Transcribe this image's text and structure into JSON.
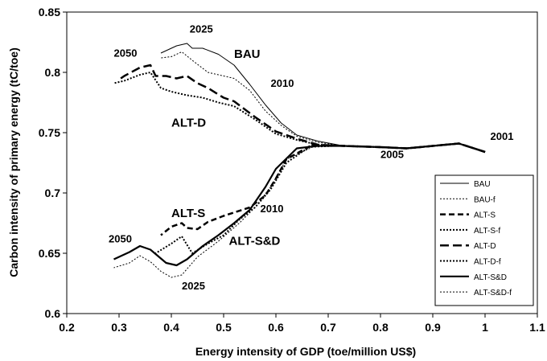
{
  "chart_data": {
    "type": "line",
    "xlabel": "Energy intensity of GDP (toe/million US$)",
    "ylabel": "Carbon intensity of primary energy (tC/toe)",
    "xlim": [
      0.2,
      1.1
    ],
    "ylim": [
      0.6,
      0.85
    ],
    "xticks": [
      0.2,
      0.3,
      0.4,
      0.5,
      0.6,
      0.7,
      0.8,
      0.9,
      1.0,
      1.1
    ],
    "yticks": [
      0.6,
      0.65,
      0.7,
      0.75,
      0.8,
      0.85
    ],
    "xtick_labels": [
      "0.2",
      "0.3",
      "0.4",
      "0.5",
      "0.6",
      "0.7",
      "0.8",
      "0.9",
      "1",
      "1.1"
    ],
    "ytick_labels": [
      "0.6",
      "0.65",
      "0.7",
      "0.75",
      "0.8",
      "0.85"
    ],
    "grid": false,
    "legend_position": "right",
    "series": [
      {
        "name": "BAU",
        "style": "solid-thin",
        "x": [
          1.0,
          0.95,
          0.85,
          0.8,
          0.73,
          0.68,
          0.64,
          0.61,
          0.58,
          0.55,
          0.52,
          0.49,
          0.46,
          0.44,
          0.43,
          0.41,
          0.39,
          0.38
        ],
        "y": [
          0.734,
          0.741,
          0.737,
          0.738,
          0.739,
          0.743,
          0.748,
          0.758,
          0.773,
          0.79,
          0.806,
          0.815,
          0.82,
          0.82,
          0.824,
          0.822,
          0.818,
          0.816
        ]
      },
      {
        "name": "BAU-f",
        "style": "dotted-thin",
        "x": [
          1.0,
          0.95,
          0.85,
          0.8,
          0.73,
          0.68,
          0.64,
          0.61,
          0.58,
          0.55,
          0.52,
          0.49,
          0.47,
          0.44,
          0.42,
          0.4,
          0.38
        ],
        "y": [
          0.734,
          0.741,
          0.737,
          0.738,
          0.739,
          0.742,
          0.747,
          0.756,
          0.768,
          0.785,
          0.795,
          0.798,
          0.8,
          0.81,
          0.817,
          0.813,
          0.812
        ]
      },
      {
        "name": "ALT-S",
        "style": "dash-thick",
        "x": [
          1.0,
          0.95,
          0.85,
          0.8,
          0.73,
          0.67,
          0.62,
          0.6,
          0.58,
          0.55,
          0.5,
          0.47,
          0.45,
          0.43,
          0.42,
          0.4,
          0.38
        ],
        "y": [
          0.734,
          0.741,
          0.737,
          0.738,
          0.739,
          0.74,
          0.728,
          0.712,
          0.698,
          0.688,
          0.681,
          0.676,
          0.67,
          0.671,
          0.675,
          0.672,
          0.665
        ]
      },
      {
        "name": "ALT-S-f",
        "style": "dotted-thick",
        "x": [
          1.0,
          0.95,
          0.85,
          0.8,
          0.73,
          0.67,
          0.62,
          0.59,
          0.56,
          0.53,
          0.5,
          0.47,
          0.44,
          0.42,
          0.4,
          0.37
        ],
        "y": [
          0.734,
          0.741,
          0.737,
          0.738,
          0.739,
          0.74,
          0.725,
          0.703,
          0.688,
          0.678,
          0.665,
          0.658,
          0.65,
          0.664,
          0.658,
          0.65
        ]
      },
      {
        "name": "ALT-D",
        "style": "longdash-thick",
        "x": [
          1.0,
          0.95,
          0.85,
          0.8,
          0.73,
          0.68,
          0.64,
          0.6,
          0.56,
          0.52,
          0.5,
          0.47,
          0.45,
          0.43,
          0.41,
          0.39,
          0.37,
          0.36,
          0.34,
          0.31,
          0.3
        ],
        "y": [
          0.734,
          0.741,
          0.737,
          0.738,
          0.739,
          0.74,
          0.745,
          0.751,
          0.763,
          0.776,
          0.779,
          0.787,
          0.791,
          0.797,
          0.795,
          0.797,
          0.797,
          0.806,
          0.804,
          0.797,
          0.794
        ]
      },
      {
        "name": "ALT-D-f",
        "style": "dotted-thick",
        "x": [
          1.0,
          0.95,
          0.85,
          0.8,
          0.73,
          0.68,
          0.64,
          0.6,
          0.56,
          0.52,
          0.49,
          0.46,
          0.43,
          0.4,
          0.38,
          0.36,
          0.34,
          0.31,
          0.29
        ],
        "y": [
          0.734,
          0.741,
          0.737,
          0.738,
          0.739,
          0.74,
          0.744,
          0.749,
          0.761,
          0.772,
          0.775,
          0.779,
          0.781,
          0.784,
          0.787,
          0.8,
          0.798,
          0.793,
          0.791
        ]
      },
      {
        "name": "ALT-S&D",
        "style": "solid-thick",
        "x": [
          1.0,
          0.95,
          0.85,
          0.8,
          0.73,
          0.68,
          0.64,
          0.6,
          0.58,
          0.55,
          0.52,
          0.49,
          0.46,
          0.43,
          0.41,
          0.39,
          0.36,
          0.34,
          0.32,
          0.29
        ],
        "y": [
          0.734,
          0.741,
          0.737,
          0.738,
          0.739,
          0.739,
          0.737,
          0.72,
          0.705,
          0.686,
          0.675,
          0.665,
          0.656,
          0.645,
          0.64,
          0.642,
          0.653,
          0.656,
          0.651,
          0.645
        ]
      },
      {
        "name": "ALT-S&D-f",
        "style": "dotted-thin",
        "x": [
          1.0,
          0.95,
          0.85,
          0.8,
          0.73,
          0.67,
          0.62,
          0.59,
          0.56,
          0.53,
          0.49,
          0.45,
          0.42,
          0.4,
          0.38,
          0.36,
          0.34,
          0.32,
          0.29
        ],
        "y": [
          0.734,
          0.741,
          0.737,
          0.738,
          0.739,
          0.738,
          0.728,
          0.705,
          0.688,
          0.675,
          0.66,
          0.647,
          0.632,
          0.63,
          0.635,
          0.643,
          0.648,
          0.642,
          0.638
        ]
      }
    ],
    "annotations": [
      {
        "text": "2025",
        "x": 0.435,
        "y": 0.833,
        "size": 13
      },
      {
        "text": "2050",
        "x": 0.29,
        "y": 0.813,
        "size": 13
      },
      {
        "text": "BAU",
        "x": 0.52,
        "y": 0.812,
        "size": 15
      },
      {
        "text": "2010",
        "x": 0.59,
        "y": 0.788,
        "size": 13
      },
      {
        "text": "ALT-D",
        "x": 0.4,
        "y": 0.755,
        "size": 15
      },
      {
        "text": "2001",
        "x": 1.01,
        "y": 0.744,
        "size": 13
      },
      {
        "text": "2005",
        "x": 0.8,
        "y": 0.729,
        "size": 13
      },
      {
        "text": "ALT-S",
        "x": 0.4,
        "y": 0.68,
        "size": 15
      },
      {
        "text": "2010",
        "x": 0.57,
        "y": 0.684,
        "size": 13
      },
      {
        "text": "2050",
        "x": 0.28,
        "y": 0.659,
        "size": 13
      },
      {
        "text": "ALT-S&D",
        "x": 0.51,
        "y": 0.657,
        "size": 15
      },
      {
        "text": "2025",
        "x": 0.42,
        "y": 0.62,
        "size": 13
      }
    ]
  }
}
